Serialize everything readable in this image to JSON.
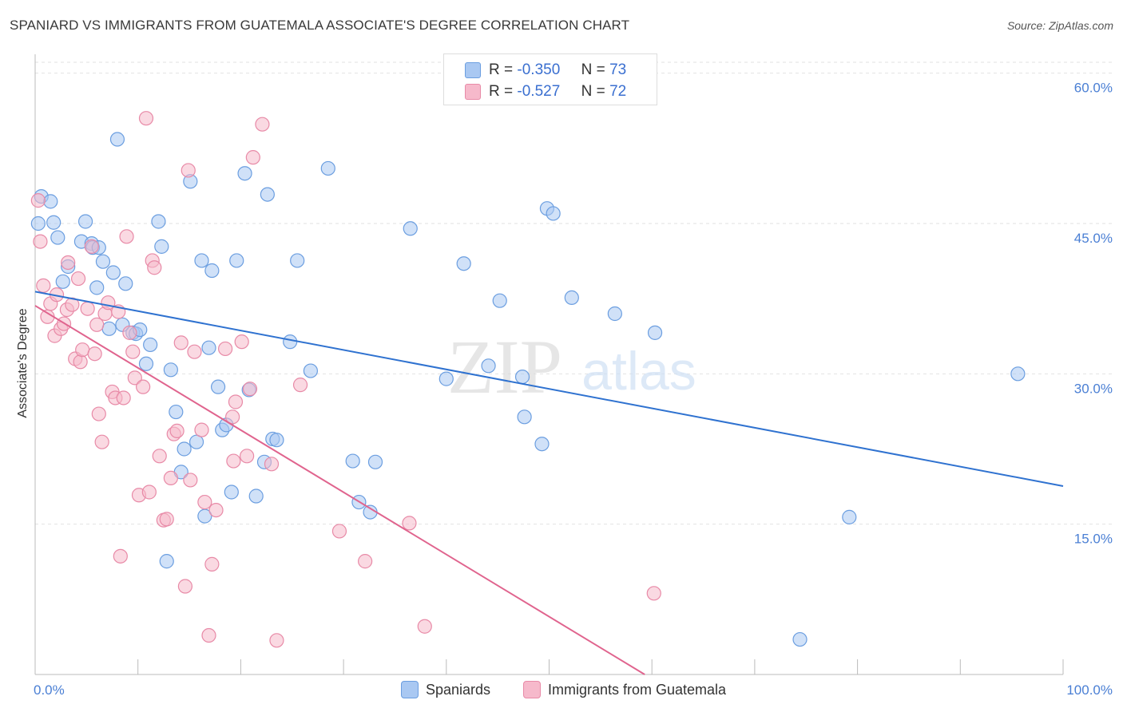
{
  "title": "SPANIARD VS IMMIGRANTS FROM GUATEMALA ASSOCIATE'S DEGREE CORRELATION CHART",
  "source": "Source: ZipAtlas.com",
  "watermark": {
    "zip": "ZIP",
    "atlas": "atlas"
  },
  "colors": {
    "blue_fill": "#a9c8f2",
    "blue_stroke": "#6b9ee0",
    "blue_line": "#2f72d0",
    "pink_fill": "#f6b9cb",
    "pink_stroke": "#e88aa7",
    "pink_line": "#e0648e",
    "grid": "#e2e2e2",
    "axis_text": "#4a7fd4"
  },
  "legend": {
    "r_label": "R =",
    "n_label": "N =",
    "items": [
      {
        "r": "-0.350",
        "n": "73",
        "color": "#a9c8f2"
      },
      {
        "r": "-0.527",
        "n": "72",
        "color": "#f6b9cb"
      }
    ]
  },
  "bottom_legend": [
    {
      "label": "Spaniards",
      "color": "#a9c8f2"
    },
    {
      "label": "Immigrants from Guatemala",
      "color": "#f6b9cb"
    }
  ],
  "chart_data": {
    "type": "scatter",
    "title": "SPANIARD VS IMMIGRANTS FROM GUATEMALA ASSOCIATE'S DEGREE CORRELATION CHART",
    "xlabel": "",
    "ylabel": "Associate's Degree",
    "xlim": [
      0,
      100
    ],
    "ylim": [
      0,
      63
    ],
    "x_tick_labels": [
      "0.0%",
      "100.0%"
    ],
    "y_ticks": [
      15,
      30,
      45,
      60
    ],
    "y_tick_labels": [
      "15.0%",
      "30.0%",
      "45.0%",
      "60.0%"
    ],
    "grid": true,
    "legend_position": "top-center",
    "series": [
      {
        "name": "Spaniards",
        "r": -0.35,
        "n": 73,
        "trend": {
          "x": [
            0,
            100
          ],
          "y": [
            38.2,
            18.8
          ]
        },
        "points": [
          [
            0.3,
            45.0
          ],
          [
            0.6,
            47.7
          ],
          [
            1.5,
            47.2
          ],
          [
            1.8,
            45.1
          ],
          [
            2.2,
            43.6
          ],
          [
            2.7,
            39.2
          ],
          [
            3.2,
            40.7
          ],
          [
            4.5,
            43.2
          ],
          [
            4.9,
            45.2
          ],
          [
            5.5,
            43.0
          ],
          [
            5.6,
            42.6
          ],
          [
            6.0,
            38.6
          ],
          [
            6.2,
            42.6
          ],
          [
            6.6,
            41.2
          ],
          [
            7.2,
            34.5
          ],
          [
            7.6,
            40.1
          ],
          [
            8.0,
            53.4
          ],
          [
            8.5,
            34.9
          ],
          [
            8.8,
            39.0
          ],
          [
            9.5,
            34.1
          ],
          [
            9.8,
            34.0
          ],
          [
            10.2,
            34.4
          ],
          [
            10.8,
            31.0
          ],
          [
            11.2,
            32.9
          ],
          [
            12.0,
            45.2
          ],
          [
            12.3,
            42.7
          ],
          [
            12.8,
            11.3
          ],
          [
            13.2,
            30.4
          ],
          [
            13.7,
            26.2
          ],
          [
            14.2,
            20.2
          ],
          [
            14.5,
            22.5
          ],
          [
            15.1,
            49.2
          ],
          [
            15.7,
            23.2
          ],
          [
            16.2,
            41.3
          ],
          [
            16.5,
            15.8
          ],
          [
            16.9,
            32.6
          ],
          [
            17.2,
            40.3
          ],
          [
            17.8,
            28.7
          ],
          [
            18.2,
            24.4
          ],
          [
            18.6,
            24.9
          ],
          [
            19.1,
            18.2
          ],
          [
            19.6,
            41.3
          ],
          [
            20.4,
            50.0
          ],
          [
            20.8,
            28.4
          ],
          [
            21.5,
            17.8
          ],
          [
            22.3,
            21.2
          ],
          [
            22.6,
            47.9
          ],
          [
            23.1,
            23.5
          ],
          [
            23.5,
            23.4
          ],
          [
            24.8,
            33.2
          ],
          [
            25.5,
            41.3
          ],
          [
            26.8,
            30.3
          ],
          [
            28.5,
            50.5
          ],
          [
            30.9,
            21.3
          ],
          [
            31.5,
            17.2
          ],
          [
            32.6,
            16.2
          ],
          [
            33.1,
            21.2
          ],
          [
            36.5,
            44.5
          ],
          [
            40.0,
            29.5
          ],
          [
            41.7,
            41.0
          ],
          [
            44.1,
            30.8
          ],
          [
            45.2,
            37.3
          ],
          [
            47.4,
            29.7
          ],
          [
            47.6,
            25.7
          ],
          [
            49.3,
            23.0
          ],
          [
            49.8,
            46.5
          ],
          [
            50.4,
            46.0
          ],
          [
            52.2,
            37.6
          ],
          [
            56.4,
            36.0
          ],
          [
            60.3,
            34.1
          ],
          [
            79.2,
            15.7
          ],
          [
            74.4,
            3.5
          ],
          [
            95.6,
            30.0
          ]
        ]
      },
      {
        "name": "Immigrants from Guatemala",
        "r": -0.527,
        "n": 72,
        "trend": {
          "x": [
            0,
            59.3
          ],
          "y": [
            36.8,
            0
          ]
        },
        "points": [
          [
            0.3,
            47.3
          ],
          [
            0.5,
            43.2
          ],
          [
            0.8,
            38.8
          ],
          [
            1.2,
            35.7
          ],
          [
            1.5,
            37.0
          ],
          [
            1.9,
            33.8
          ],
          [
            2.1,
            37.9
          ],
          [
            2.5,
            34.5
          ],
          [
            2.8,
            35.0
          ],
          [
            3.1,
            36.4
          ],
          [
            3.2,
            41.1
          ],
          [
            3.6,
            36.9
          ],
          [
            3.9,
            31.5
          ],
          [
            4.2,
            39.5
          ],
          [
            4.4,
            31.2
          ],
          [
            4.6,
            32.4
          ],
          [
            5.1,
            36.5
          ],
          [
            5.5,
            42.7
          ],
          [
            5.8,
            32.0
          ],
          [
            6.0,
            34.9
          ],
          [
            6.2,
            26.0
          ],
          [
            6.5,
            23.2
          ],
          [
            6.8,
            36.0
          ],
          [
            7.1,
            37.1
          ],
          [
            7.5,
            28.2
          ],
          [
            7.8,
            27.6
          ],
          [
            8.1,
            36.2
          ],
          [
            8.3,
            11.8
          ],
          [
            8.6,
            27.6
          ],
          [
            8.9,
            43.7
          ],
          [
            9.2,
            34.1
          ],
          [
            9.5,
            32.2
          ],
          [
            9.7,
            29.6
          ],
          [
            10.1,
            17.9
          ],
          [
            10.5,
            28.7
          ],
          [
            10.8,
            55.5
          ],
          [
            11.1,
            18.2
          ],
          [
            11.4,
            41.3
          ],
          [
            11.6,
            40.6
          ],
          [
            12.1,
            21.8
          ],
          [
            12.5,
            15.4
          ],
          [
            12.8,
            15.5
          ],
          [
            13.2,
            19.6
          ],
          [
            13.5,
            24.0
          ],
          [
            13.8,
            24.3
          ],
          [
            14.2,
            33.1
          ],
          [
            14.6,
            8.8
          ],
          [
            14.9,
            50.3
          ],
          [
            15.1,
            19.4
          ],
          [
            15.5,
            32.2
          ],
          [
            16.2,
            24.4
          ],
          [
            16.5,
            17.2
          ],
          [
            16.9,
            3.9
          ],
          [
            17.2,
            11.0
          ],
          [
            17.6,
            16.4
          ],
          [
            18.5,
            32.5
          ],
          [
            19.2,
            25.7
          ],
          [
            19.3,
            21.3
          ],
          [
            19.5,
            27.2
          ],
          [
            20.1,
            33.2
          ],
          [
            20.6,
            21.8
          ],
          [
            20.9,
            28.5
          ],
          [
            21.2,
            51.6
          ],
          [
            22.1,
            54.9
          ],
          [
            23.0,
            21.0
          ],
          [
            23.5,
            3.4
          ],
          [
            25.8,
            28.9
          ],
          [
            29.6,
            14.3
          ],
          [
            32.1,
            11.3
          ],
          [
            36.4,
            15.1
          ],
          [
            37.9,
            4.8
          ],
          [
            60.2,
            8.1
          ]
        ]
      }
    ]
  }
}
